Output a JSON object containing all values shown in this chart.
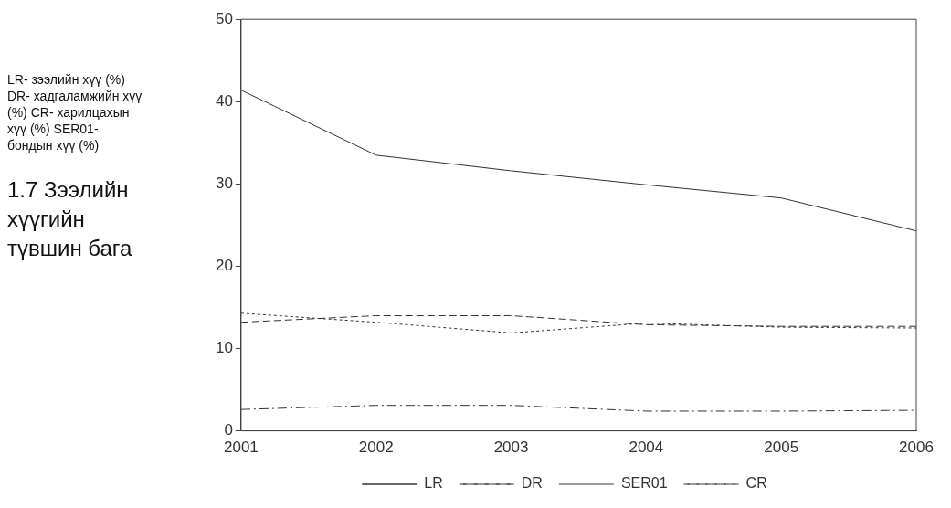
{
  "chart_data": {
    "type": "line",
    "annotations": [
      "LR- зээлийн хүү (%)    DR- хадгаламжийн хүү (%) CR- харилцахын хүү (%) SER01- бондын хүү (%)",
      "1.7      Зээлийн хүүгийн түвшин бага"
    ],
    "categories": [
      "2001",
      "2002",
      "2003",
      "2004",
      "2005",
      "2006"
    ],
    "series": [
      {
        "name": "LR",
        "color": "#333333",
        "line_style": "solid",
        "values": [
          41.4,
          33.5,
          31.6,
          29.9,
          28.3,
          24.3
        ]
      },
      {
        "name": "DR",
        "color": "#333333",
        "line_style": "dashed",
        "values": [
          13.2,
          14.0,
          14.0,
          12.9,
          12.7,
          12.7
        ]
      },
      {
        "name": "SER01",
        "color": "#333333",
        "line_style": "dotted",
        "values": [
          14.3,
          13.2,
          11.9,
          13.1,
          12.6,
          12.5
        ]
      },
      {
        "name": "CR",
        "color": "#333333",
        "line_style": "dashdot",
        "values": [
          2.6,
          3.1,
          3.1,
          2.4,
          2.4,
          2.5
        ]
      }
    ],
    "ylim": [
      0,
      50
    ],
    "yticks": [
      0,
      10,
      20,
      30,
      40,
      50
    ],
    "grid": false,
    "legend": "bottom",
    "marker": "none"
  }
}
